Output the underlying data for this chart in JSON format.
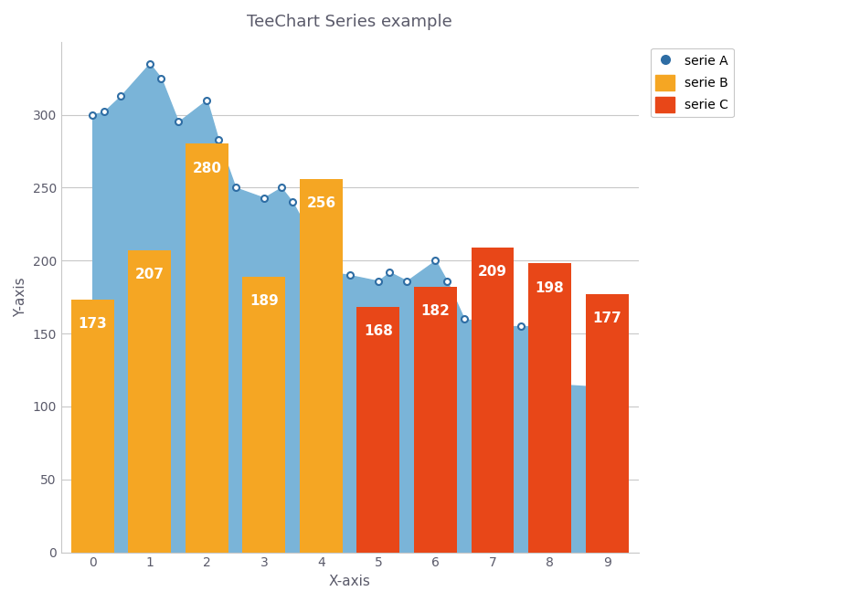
{
  "title": "TeeChart Series example",
  "xlabel": "X-axis",
  "ylabel": "Y-axis",
  "background_color": "#ffffff",
  "plot_bg_color": "#ffffff",
  "grid_color": "#c8c8c8",
  "serie_a_x": [
    0,
    0.2,
    0.5,
    1.0,
    1.2,
    1.5,
    2.0,
    2.2,
    2.5,
    3.0,
    3.3,
    3.5,
    4.0,
    4.2,
    4.5,
    5.0,
    5.2,
    5.5,
    6.0,
    6.2,
    6.5,
    7.0,
    7.2,
    7.5,
    8.0,
    8.2,
    9.0
  ],
  "serie_a_y": [
    300,
    302,
    313,
    335,
    325,
    295,
    310,
    283,
    250,
    243,
    250,
    240,
    204,
    192,
    190,
    186,
    192,
    186,
    200,
    186,
    160,
    157,
    155,
    155,
    155,
    115,
    113
  ],
  "serie_a_color": "#7ab4d8",
  "serie_a_dot_color": "#2e6da4",
  "serie_b_positions": [
    0,
    1,
    2,
    3,
    4
  ],
  "serie_b_values": [
    173,
    207,
    280,
    189,
    256
  ],
  "serie_b_color": "#f5a623",
  "serie_c_positions": [
    5,
    6,
    7,
    8,
    9
  ],
  "serie_c_values": [
    168,
    182,
    209,
    198,
    177
  ],
  "serie_c_color": "#e84718",
  "bar_width": 0.75,
  "ylim": [
    0,
    350
  ],
  "xlim": [
    -0.55,
    9.55
  ],
  "yticks": [
    0,
    50,
    100,
    150,
    200,
    250,
    300
  ],
  "xticks": [
    0,
    1,
    2,
    3,
    4,
    5,
    6,
    7,
    8,
    9
  ],
  "title_color": "#5a5a6a",
  "axis_label_color": "#5a5a6a",
  "tick_color": "#5a5a6a",
  "legend_labels": [
    "serie A",
    "serie B",
    "serie C"
  ],
  "label_fontsize": 11,
  "title_fontsize": 13
}
